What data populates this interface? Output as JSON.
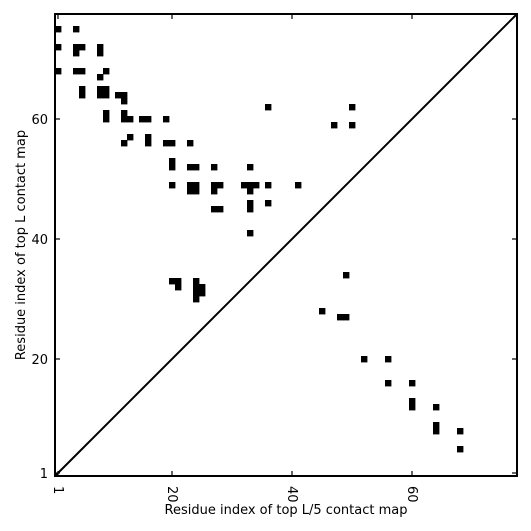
{
  "chart_data": {
    "type": "heatmap",
    "title": "",
    "xlabel": "Residue index of top L/5 contact map",
    "ylabel": "Residue index of top L contact map",
    "xlim": [
      0.5,
      77.5
    ],
    "ylim": [
      0.5,
      77.5
    ],
    "xticks": [
      1,
      20,
      40,
      60
    ],
    "yticks": [
      1,
      20,
      40,
      60
    ],
    "diagonal": true,
    "grid": false,
    "cell_color": "#000000",
    "upper_left_contacts": [
      [
        1,
        75
      ],
      [
        4,
        75
      ],
      [
        1,
        72
      ],
      [
        4,
        72
      ],
      [
        5,
        72
      ],
      [
        8,
        72
      ],
      [
        4,
        71
      ],
      [
        8,
        71
      ],
      [
        1,
        68
      ],
      [
        4,
        68
      ],
      [
        5,
        68
      ],
      [
        9,
        68
      ],
      [
        8,
        67
      ],
      [
        5,
        65
      ],
      [
        5,
        64
      ],
      [
        8,
        65
      ],
      [
        9,
        65
      ],
      [
        8,
        64
      ],
      [
        9,
        64
      ],
      [
        11,
        64
      ],
      [
        12,
        64
      ],
      [
        12,
        63
      ],
      [
        9,
        61
      ],
      [
        12,
        61
      ],
      [
        9,
        60
      ],
      [
        12,
        60
      ],
      [
        13,
        60
      ],
      [
        15,
        60
      ],
      [
        16,
        60
      ],
      [
        19,
        60
      ],
      [
        13,
        57
      ],
      [
        16,
        57
      ],
      [
        12,
        56
      ],
      [
        16,
        56
      ],
      [
        19,
        56
      ],
      [
        20,
        56
      ],
      [
        23,
        56
      ],
      [
        20,
        53
      ],
      [
        20,
        52
      ],
      [
        23,
        52
      ],
      [
        24,
        52
      ],
      [
        27,
        52
      ],
      [
        33,
        52
      ],
      [
        20,
        49
      ],
      [
        23,
        49
      ],
      [
        24,
        49
      ],
      [
        27,
        49
      ],
      [
        28,
        49
      ],
      [
        32,
        49
      ],
      [
        33,
        49
      ],
      [
        34,
        49
      ],
      [
        36,
        49
      ],
      [
        41,
        49
      ],
      [
        23,
        48
      ],
      [
        24,
        48
      ],
      [
        27,
        48
      ],
      [
        33,
        48
      ],
      [
        27,
        45
      ],
      [
        28,
        45
      ],
      [
        33,
        45
      ],
      [
        33,
        46
      ],
      [
        36,
        46
      ],
      [
        33,
        41
      ],
      [
        36,
        62
      ],
      [
        50,
        62
      ],
      [
        47,
        59
      ],
      [
        50,
        59
      ]
    ],
    "lower_right_contacts": [
      [
        20,
        33
      ],
      [
        21,
        33
      ],
      [
        21,
        32
      ],
      [
        24,
        33
      ],
      [
        24,
        32
      ],
      [
        25,
        32
      ],
      [
        24,
        31
      ],
      [
        25,
        31
      ],
      [
        24,
        30
      ],
      [
        49,
        34
      ],
      [
        45,
        28
      ],
      [
        48,
        27
      ],
      [
        49,
        27
      ],
      [
        52,
        20
      ],
      [
        56,
        20
      ],
      [
        56,
        16
      ],
      [
        60,
        16
      ],
      [
        60,
        13
      ],
      [
        60,
        12
      ],
      [
        64,
        12
      ],
      [
        64,
        9
      ],
      [
        64,
        8
      ],
      [
        68,
        8
      ],
      [
        68,
        5
      ]
    ]
  }
}
